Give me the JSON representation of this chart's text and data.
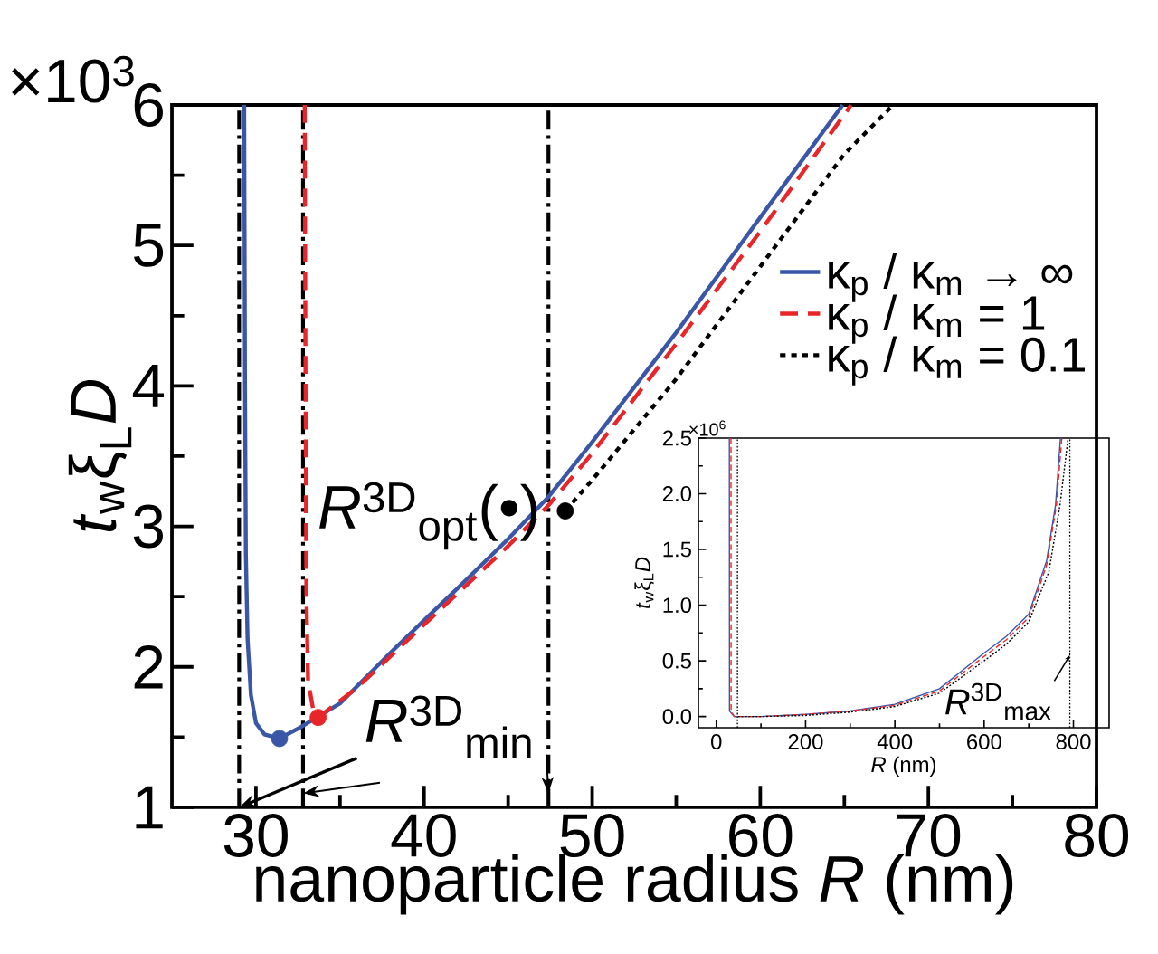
{
  "chart_data": [
    {
      "type": "line",
      "xlabel": "nanoparticle radius *R* (nm)",
      "ylabel": "*t*$_{w}$ξ$_{L}$*D*",
      "xlim": [
        25,
        80
      ],
      "ylim": [
        1,
        6
      ],
      "xticks": [
        30,
        40,
        50,
        60,
        70,
        80
      ],
      "yticks": [
        1,
        2,
        3,
        4,
        5,
        6
      ],
      "legend": "right",
      "series": [
        {
          "name": "κ$_{p}$ / κ$_{m}$ → ∞",
          "color": "#3a57a7",
          "line_style": "solid",
          "x": [
            29.3,
            29.35,
            29.4,
            29.5,
            29.7,
            30.0,
            30.5,
            31.4,
            32.5,
            35,
            38,
            40.6,
            42,
            45,
            47.4,
            50,
            55,
            60,
            64.9
          ],
          "values": [
            6.0,
            4.0,
            2.8,
            2.2,
            1.8,
            1.6,
            1.52,
            1.49,
            1.56,
            1.74,
            2.1,
            2.4,
            2.56,
            2.91,
            3.21,
            3.6,
            4.38,
            5.2,
            6.0
          ]
        },
        {
          "name": "κ$_{p}$ / κ$_{m}$ = 1",
          "color": "#e8262a",
          "line_style": "dashed",
          "x": [
            32.9,
            32.95,
            33.0,
            33.1,
            33.4,
            33.7,
            36,
            40,
            45,
            47.4,
            50,
            55,
            60,
            65.4
          ],
          "values": [
            6.0,
            4.0,
            2.5,
            1.9,
            1.7,
            1.64,
            1.85,
            2.3,
            2.86,
            3.15,
            3.52,
            4.3,
            5.1,
            6.0
          ]
        },
        {
          "name": "κ$_{p}$ / κ$_{m}$ = 0.1",
          "color": "#000000",
          "line_style": "dotted",
          "x": [
            48.4,
            50,
            55,
            60,
            65,
            67.9
          ],
          "values": [
            3.11,
            3.33,
            4.05,
            4.85,
            5.65,
            6.0
          ]
        },
        {
          "type": "scatter",
          "color": "#3a57a7",
          "marker": "circle",
          "x": [
            31.4
          ],
          "values": [
            1.49
          ]
        },
        {
          "type": "scatter",
          "color": "#e8262a",
          "marker": "circle",
          "x": [
            33.7
          ],
          "values": [
            1.64
          ]
        },
        {
          "type": "scatter",
          "color": "#000000",
          "marker": "circle",
          "x": [
            48.4
          ],
          "values": [
            3.11
          ]
        }
      ],
      "ref_lines": [
        {
          "axis": "x",
          "value": 29.0,
          "color": "#000000",
          "line_style": "dashdot"
        },
        {
          "axis": "x",
          "value": 32.8,
          "color": "#000000",
          "line_style": "dashdot"
        },
        {
          "axis": "x",
          "value": 47.4,
          "color": "#000000",
          "line_style": "dashdot"
        }
      ],
      "annotations": [
        "×10$^{3}$",
        "*R*$^{3D}$$_{opt}$(•)",
        {
          "text": "*R*$^{3D}$$_{min}$",
          "x": 29.0,
          "y": 1.0
        }
      ]
    },
    {
      "type": "line",
      "xlabel": "*R* (nm)",
      "ylabel": "*t*$_{w}$ξ$_{L}$*D*",
      "xlim": [
        -40,
        880
      ],
      "ylim": [
        -0.1,
        2.5
      ],
      "xticks": [
        0,
        200,
        400,
        600,
        800
      ],
      "yticks": [
        {
          "value": 0,
          "label": "0.0"
        },
        {
          "value": 0.5,
          "label": "0.5"
        },
        {
          "value": 1.0,
          "label": "1.0"
        },
        {
          "value": 1.5,
          "label": "1.5"
        },
        {
          "value": 2.0,
          "label": "2.0"
        },
        {
          "value": 2.5,
          "label": "2.5"
        }
      ],
      "series": [
        {
          "color": "#3a57a7",
          "line_style": "solid",
          "x": [
            29.3,
            29.6,
            40,
            100,
            200,
            300,
            400,
            500,
            600,
            650,
            700,
            740,
            760,
            771
          ],
          "values": [
            2.5,
            0.05,
            0.0,
            0.0,
            0.02,
            0.05,
            0.11,
            0.25,
            0.57,
            0.72,
            0.92,
            1.4,
            1.9,
            2.5
          ]
        },
        {
          "color": "#e8262a",
          "line_style": "dashed",
          "x": [
            32.9,
            33.2,
            40,
            100,
            200,
            300,
            400,
            500,
            600,
            650,
            700,
            740,
            762,
            774
          ],
          "values": [
            2.5,
            0.05,
            0.0,
            0.0,
            0.02,
            0.05,
            0.1,
            0.23,
            0.54,
            0.69,
            0.89,
            1.36,
            1.9,
            2.5
          ]
        },
        {
          "color": "#000000",
          "line_style": "dotted",
          "x": [
            48.4,
            100,
            200,
            300,
            400,
            500,
            600,
            650,
            700,
            745,
            770,
            788
          ],
          "values": [
            0.0,
            0.0,
            0.01,
            0.04,
            0.09,
            0.21,
            0.5,
            0.65,
            0.85,
            1.3,
            1.9,
            2.5
          ]
        }
      ],
      "ref_lines": [
        {
          "axis": "x",
          "value": 47.4,
          "color": "#000000",
          "line_style": "dotted"
        },
        {
          "axis": "x",
          "value": 792,
          "color": "#000000",
          "line_style": "dotted"
        }
      ],
      "annotations": [
        "×10$^{6}$",
        {
          "text": "*R*$^{3D}$$_{max}$",
          "x": 792,
          "y": 0.55
        }
      ]
    }
  ]
}
